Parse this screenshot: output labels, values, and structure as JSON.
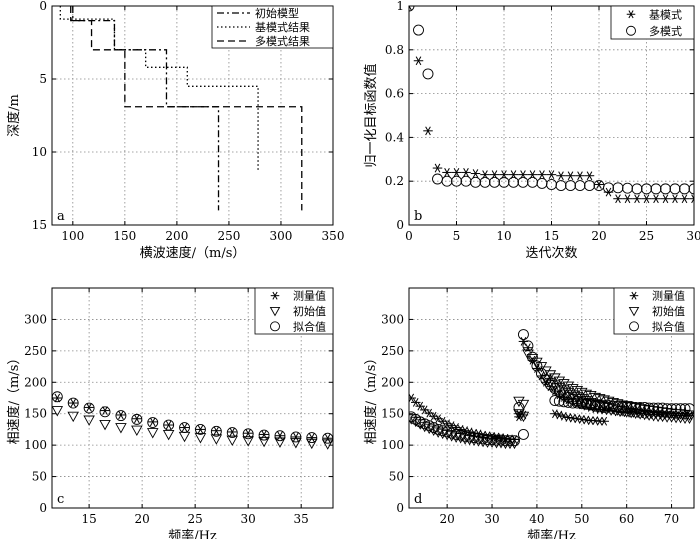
{
  "chart_data": [
    {
      "panel": "a",
      "type": "line",
      "xlabel": "横波速度/（m/s）",
      "ylabel": "深度/m",
      "xlim": [
        80,
        350
      ],
      "ylim": [
        0,
        15
      ],
      "xticks": [
        100,
        150,
        200,
        250,
        300,
        350
      ],
      "yticks": [
        0,
        5,
        10,
        15
      ],
      "grid": true,
      "legend_position": "top-right",
      "series": [
        {
          "name": "初始模型",
          "style": "dashdot",
          "x": [
            100,
            100,
            140,
            140,
            190,
            190,
            240,
            240
          ],
          "y": [
            0,
            1,
            1,
            3,
            3,
            6.9,
            6.9,
            14
          ]
        },
        {
          "name": "基模式结果",
          "style": "dotted",
          "x": [
            88,
            88,
            140,
            140,
            170,
            170,
            210,
            210,
            278,
            278
          ],
          "y": [
            0,
            0.9,
            0.9,
            3,
            3,
            4.2,
            4.2,
            5.5,
            5.5,
            11.3
          ]
        },
        {
          "name": "多模式结果",
          "style": "dashed",
          "x": [
            98,
            98,
            118,
            118,
            150,
            150,
            320,
            320
          ],
          "y": [
            0,
            1,
            1,
            3,
            3,
            6.9,
            6.9,
            14
          ]
        }
      ]
    },
    {
      "panel": "b",
      "type": "scatter",
      "xlabel": "迭代次数",
      "ylabel": "归一化目标函数值",
      "xlim": [
        0,
        30
      ],
      "ylim": [
        0,
        1
      ],
      "xticks": [
        0,
        5,
        10,
        15,
        20,
        25,
        30
      ],
      "yticks": [
        0,
        0.2,
        0.4,
        0.6,
        0.8,
        1
      ],
      "grid": true,
      "legend_position": "top-right",
      "series": [
        {
          "name": "基模式",
          "marker": "asterisk",
          "x": [
            0,
            1,
            2,
            3,
            4,
            5,
            6,
            7,
            8,
            9,
            10,
            11,
            12,
            13,
            14,
            15,
            16,
            17,
            18,
            19,
            20,
            21,
            22,
            23,
            24,
            25,
            26,
            27,
            28,
            29,
            30
          ],
          "y": [
            1.0,
            0.75,
            0.43,
            0.26,
            0.24,
            0.24,
            0.24,
            0.235,
            0.23,
            0.23,
            0.23,
            0.23,
            0.23,
            0.23,
            0.23,
            0.23,
            0.225,
            0.225,
            0.225,
            0.225,
            0.185,
            0.15,
            0.12,
            0.12,
            0.12,
            0.12,
            0.12,
            0.12,
            0.12,
            0.12,
            0.12
          ]
        },
        {
          "name": "多模式",
          "marker": "circle",
          "x": [
            0,
            1,
            2,
            3,
            4,
            5,
            6,
            7,
            8,
            9,
            10,
            11,
            12,
            13,
            14,
            15,
            16,
            17,
            18,
            19,
            20,
            21,
            22,
            23,
            24,
            25,
            26,
            27,
            28,
            29,
            30
          ],
          "y": [
            1.0,
            0.89,
            0.69,
            0.21,
            0.2,
            0.2,
            0.2,
            0.195,
            0.195,
            0.195,
            0.195,
            0.195,
            0.195,
            0.195,
            0.19,
            0.185,
            0.18,
            0.18,
            0.18,
            0.18,
            0.18,
            0.17,
            0.17,
            0.168,
            0.165,
            0.165,
            0.165,
            0.165,
            0.165,
            0.165,
            0.165
          ]
        }
      ]
    },
    {
      "panel": "c",
      "type": "scatter",
      "xlabel": "频率/Hz",
      "ylabel": "相速度/（m/s）",
      "xlim": [
        11.5,
        38
      ],
      "ylim": [
        0,
        350
      ],
      "xticks": [
        15,
        20,
        25,
        30,
        35
      ],
      "yticks": [
        0,
        50,
        100,
        150,
        200,
        250,
        300
      ],
      "grid": true,
      "legend_position": "top-right",
      "series": [
        {
          "name": "测量值",
          "marker": "asterisk",
          "x": [
            12,
            13.5,
            15,
            16.5,
            18,
            19.5,
            21,
            22.5,
            24,
            25.5,
            27,
            28.5,
            30,
            31.5,
            33,
            34.5,
            36,
            37.5
          ],
          "y": [
            175,
            167,
            160,
            155,
            148,
            142,
            137,
            132,
            128,
            125,
            123,
            121,
            119,
            117,
            115,
            113,
            112,
            111
          ]
        },
        {
          "name": "初始值",
          "marker": "triangle",
          "x": [
            12,
            13.5,
            15,
            16.5,
            18,
            19.5,
            21,
            22.5,
            24,
            25.5,
            27,
            28.5,
            30,
            31.5,
            33,
            34.5,
            36,
            37.5
          ],
          "y": [
            155,
            146,
            140,
            133,
            128,
            124,
            120,
            117,
            114,
            112,
            110,
            108,
            107,
            106,
            105,
            104,
            103,
            102
          ]
        },
        {
          "name": "拟合值",
          "marker": "circle",
          "x": [
            12,
            13.5,
            15,
            16.5,
            18,
            19.5,
            21,
            22.5,
            24,
            25.5,
            27,
            28.5,
            30,
            31.5,
            33,
            34.5,
            36,
            37.5
          ],
          "y": [
            177,
            167,
            159,
            153,
            147,
            141,
            136,
            132,
            128,
            125,
            122,
            120,
            118,
            116,
            115,
            113,
            112,
            111
          ]
        }
      ]
    },
    {
      "panel": "d",
      "type": "scatter",
      "xlabel": "频率/Hz",
      "ylabel": "相速度/（m/s）",
      "xlim": [
        11.5,
        75
      ],
      "ylim": [
        0,
        350
      ],
      "xticks": [
        20,
        30,
        40,
        50,
        60,
        70
      ],
      "yticks": [
        0,
        50,
        100,
        150,
        200,
        250,
        300
      ],
      "grid": true,
      "legend_position": "top-right",
      "series": [
        {
          "name": "测量值",
          "marker": "asterisk",
          "x": [
            12,
            13,
            14,
            15,
            16,
            17,
            18,
            19,
            20,
            21,
            22,
            23,
            24,
            25,
            26,
            27,
            28,
            29,
            30,
            31,
            32,
            33,
            34,
            35,
            36,
            37,
            38,
            39,
            40,
            41,
            42,
            43,
            44,
            45,
            46,
            47,
            48,
            49,
            50,
            51,
            52,
            53,
            54,
            55,
            56,
            57,
            58,
            59,
            60,
            61,
            62,
            63,
            64,
            65,
            66,
            67,
            68,
            69,
            70,
            71,
            72,
            73,
            74,
            36,
            37,
            44,
            45,
            46,
            47,
            48,
            49,
            50,
            51,
            52,
            53,
            54,
            55
          ],
          "y": [
            175,
            168,
            162,
            156,
            151,
            146,
            142,
            138,
            134,
            131,
            128,
            125,
            123,
            121,
            119,
            118,
            116,
            115,
            114,
            113,
            112,
            111,
            110,
            109,
            150,
            265,
            255,
            235,
            222,
            210,
            200,
            193,
            186,
            180,
            176,
            172,
            169,
            166,
            164,
            162,
            160,
            158,
            157,
            156,
            155,
            154,
            153,
            152,
            152,
            151,
            151,
            150,
            150,
            149,
            149,
            149,
            148,
            148,
            148,
            147,
            147,
            147,
            147,
            145,
            148,
            150,
            148,
            146,
            144,
            143,
            142,
            141,
            140,
            139,
            139,
            138,
            138
          ]
        },
        {
          "name": "初始值",
          "marker": "triangle",
          "x": [
            12,
            13,
            14,
            15,
            16,
            17,
            18,
            19,
            20,
            21,
            22,
            23,
            24,
            25,
            26,
            27,
            28,
            29,
            30,
            31,
            32,
            33,
            34,
            35,
            36,
            37,
            36,
            37,
            38,
            39,
            40,
            41,
            42,
            43,
            44,
            45,
            46,
            47,
            48,
            49,
            50,
            51,
            52,
            53,
            54,
            55,
            56,
            57,
            58,
            59,
            60,
            61,
            62,
            63,
            64,
            65,
            66,
            67,
            68,
            69,
            70,
            71,
            72,
            73,
            74,
            42,
            43,
            44,
            45,
            46,
            47,
            48,
            49,
            50,
            51,
            52,
            53,
            54,
            55,
            56,
            57,
            58,
            59,
            60,
            61,
            62,
            63,
            64,
            65,
            66,
            67,
            68,
            69,
            70,
            71,
            72,
            73,
            74
          ],
          "y": [
            142,
            138,
            134,
            130,
            127,
            124,
            121,
            119,
            117,
            115,
            113,
            112,
            110,
            109,
            108,
            107,
            106,
            105,
            105,
            104,
            104,
            103,
            103,
            103,
            170,
            165,
            150,
            146,
            245,
            238,
            232,
            225,
            218,
            212,
            207,
            202,
            198,
            194,
            190,
            187,
            184,
            181,
            179,
            176,
            174,
            172,
            170,
            168,
            166,
            164,
            163,
            161,
            160,
            158,
            157,
            156,
            155,
            154,
            153,
            152,
            151,
            150,
            150,
            149,
            148,
            205,
            200,
            196,
            192,
            188,
            184,
            180,
            177,
            174,
            171,
            168,
            166,
            164,
            162,
            160,
            158,
            156,
            155,
            153,
            152,
            151,
            150,
            149,
            148,
            147,
            146,
            146,
            145,
            145,
            144,
            144,
            143,
            143
          ]
        },
        {
          "name": "拟合值",
          "marker": "circle",
          "x": [
            12,
            13,
            14,
            15,
            16,
            17,
            18,
            19,
            20,
            21,
            22,
            23,
            24,
            25,
            26,
            27,
            28,
            29,
            30,
            31,
            32,
            33,
            34,
            35,
            36,
            37,
            37,
            38,
            39,
            40,
            41,
            42,
            43,
            44,
            45,
            46,
            47,
            48,
            49,
            50,
            51,
            52,
            53,
            54,
            55,
            44,
            45,
            46,
            47,
            48,
            49,
            50,
            51,
            52,
            53,
            54,
            55,
            56,
            57,
            58,
            59,
            60,
            61,
            62,
            63,
            64,
            65,
            66,
            67,
            68,
            69,
            70,
            71,
            72,
            73,
            74
          ],
          "y": [
            145,
            141,
            137,
            134,
            131,
            128,
            125,
            123,
            121,
            119,
            117,
            116,
            114,
            113,
            112,
            111,
            110,
            109,
            109,
            108,
            108,
            107,
            107,
            107,
            160,
            117,
            276,
            258,
            240,
            226,
            214,
            204,
            196,
            190,
            185,
            180,
            176,
            173,
            170,
            168,
            166,
            164,
            162,
            161,
            160,
            171,
            170,
            169,
            168,
            167,
            167,
            166,
            165,
            165,
            164,
            164,
            163,
            163,
            162,
            162,
            161,
            161,
            161,
            160,
            160,
            160,
            159,
            159,
            159,
            159,
            158,
            158,
            158,
            158,
            158,
            158
          ]
        }
      ]
    }
  ]
}
